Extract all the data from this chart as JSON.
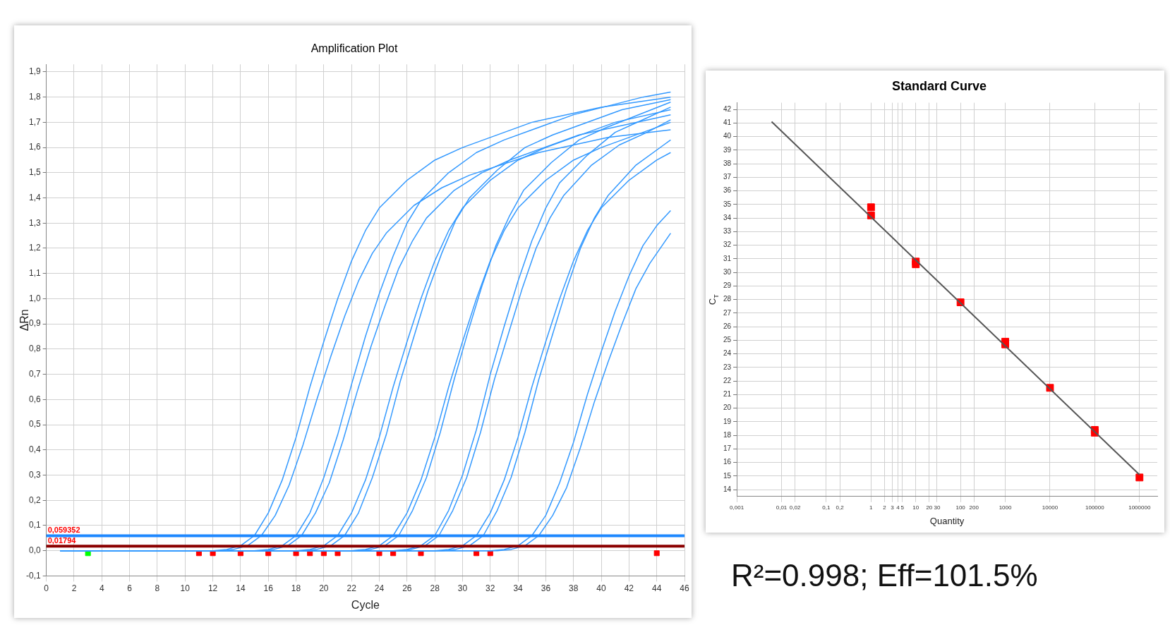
{
  "chart_data": [
    {
      "type": "line",
      "title": "Amplification Plot",
      "xlabel": "Cycle",
      "ylabel": "ΔRn",
      "xlim": [
        0,
        46
      ],
      "xticks": [
        0,
        2,
        4,
        6,
        8,
        10,
        12,
        14,
        16,
        18,
        20,
        22,
        24,
        26,
        28,
        30,
        32,
        34,
        36,
        38,
        40,
        42,
        44,
        46
      ],
      "ylim": [
        -0.1,
        1.93
      ],
      "yticks": [
        {
          "value": -0.1,
          "label": "-0,1"
        },
        {
          "value": 0,
          "label": "0,0"
        },
        {
          "value": 0.1,
          "label": "0,1"
        },
        {
          "value": 0.2,
          "label": "0,2"
        },
        {
          "value": 0.3,
          "label": "0,3"
        },
        {
          "value": 0.4,
          "label": "0,4"
        },
        {
          "value": 0.5,
          "label": "0,5"
        },
        {
          "value": 0.6,
          "label": "0,6"
        },
        {
          "value": 0.7,
          "label": "0,7"
        },
        {
          "value": 0.8,
          "label": "0,8"
        },
        {
          "value": 0.9,
          "label": "0,9"
        },
        {
          "value": 1,
          "label": "1,0"
        },
        {
          "value": 1.1,
          "label": "1,1"
        },
        {
          "value": 1.2,
          "label": "1,2"
        },
        {
          "value": 1.3,
          "label": "1,3"
        },
        {
          "value": 1.4,
          "label": "1,4"
        },
        {
          "value": 1.5,
          "label": "1,5"
        },
        {
          "value": 1.6,
          "label": "1,6"
        },
        {
          "value": 1.7,
          "label": "1,7"
        },
        {
          "value": 1.8,
          "label": "1,8"
        },
        {
          "value": 1.9,
          "label": "1,9"
        }
      ],
      "grid": true,
      "legend": false,
      "ref_lines": [
        {
          "axis": "y",
          "value": 0.059352,
          "label": "0,059352",
          "color": "#1e88ff"
        },
        {
          "axis": "y",
          "value": 0.01794,
          "label": "0,01794",
          "color": "#8b0000"
        }
      ],
      "series": [
        {
          "color": "#3399ff",
          "x": [
            1,
            12,
            13,
            14,
            15,
            16,
            17,
            18,
            19,
            20,
            21,
            22,
            23,
            24,
            26,
            28,
            30,
            35,
            40,
            45
          ],
          "values": [
            0,
            0,
            0.005,
            0.02,
            0.06,
            0.15,
            0.28,
            0.45,
            0.65,
            0.83,
            1.0,
            1.15,
            1.27,
            1.36,
            1.47,
            1.55,
            1.6,
            1.7,
            1.76,
            1.8
          ]
        },
        {
          "color": "#3399ff",
          "x": [
            1,
            12.5,
            13.5,
            14.5,
            15.5,
            16.5,
            17.5,
            18.5,
            19.5,
            20.5,
            21.5,
            22.5,
            23.5,
            24.5,
            26.5,
            28.5,
            30.5,
            35.5,
            40.5,
            45
          ],
          "values": [
            0,
            0,
            0.005,
            0.02,
            0.06,
            0.14,
            0.26,
            0.42,
            0.6,
            0.77,
            0.93,
            1.07,
            1.18,
            1.26,
            1.37,
            1.44,
            1.49,
            1.58,
            1.64,
            1.67
          ]
        },
        {
          "color": "#3399ff",
          "x": [
            1,
            15,
            16,
            17,
            18,
            19,
            20,
            21,
            22,
            23,
            24,
            25,
            26,
            27,
            29,
            31,
            33,
            38,
            43,
            45
          ],
          "values": [
            0,
            0,
            0.005,
            0.02,
            0.06,
            0.15,
            0.29,
            0.46,
            0.66,
            0.85,
            1.02,
            1.17,
            1.3,
            1.39,
            1.5,
            1.58,
            1.63,
            1.73,
            1.8,
            1.82
          ]
        },
        {
          "color": "#3399ff",
          "x": [
            1,
            15.4,
            16.4,
            17.4,
            18.4,
            19.4,
            20.4,
            21.4,
            22.4,
            23.4,
            24.4,
            25.4,
            26.4,
            27.4,
            29.4,
            31.4,
            33.4,
            38.4,
            43.4,
            45
          ],
          "values": [
            0,
            0,
            0.005,
            0.02,
            0.06,
            0.15,
            0.27,
            0.44,
            0.63,
            0.81,
            0.97,
            1.12,
            1.23,
            1.32,
            1.43,
            1.5,
            1.55,
            1.65,
            1.71,
            1.73
          ]
        },
        {
          "color": "#3399ff",
          "x": [
            1,
            18,
            19,
            20,
            21,
            22,
            23,
            24,
            25,
            26,
            27,
            28,
            29,
            30,
            32,
            34,
            36,
            41,
            45
          ],
          "values": [
            0,
            0,
            0.005,
            0.02,
            0.06,
            0.15,
            0.28,
            0.45,
            0.65,
            0.83,
            1.0,
            1.15,
            1.27,
            1.36,
            1.47,
            1.55,
            1.6,
            1.7,
            1.75
          ]
        },
        {
          "color": "#3399ff",
          "x": [
            1,
            18.5,
            19.5,
            20.5,
            21.5,
            22.5,
            23.5,
            24.5,
            25.5,
            26.5,
            27.5,
            28.5,
            29.5,
            30.5,
            32.5,
            34.5,
            36.5,
            41.5,
            45
          ],
          "values": [
            0,
            0,
            0.005,
            0.02,
            0.06,
            0.15,
            0.29,
            0.46,
            0.67,
            0.85,
            1.03,
            1.18,
            1.31,
            1.4,
            1.51,
            1.6,
            1.65,
            1.75,
            1.79
          ]
        },
        {
          "color": "#3399ff",
          "x": [
            1,
            22,
            23,
            24,
            25,
            26,
            27,
            28,
            29,
            30,
            31,
            32,
            33,
            34,
            36,
            38,
            40,
            45
          ],
          "values": [
            0,
            0,
            0.005,
            0.02,
            0.06,
            0.15,
            0.28,
            0.45,
            0.65,
            0.83,
            1.0,
            1.15,
            1.27,
            1.36,
            1.47,
            1.55,
            1.6,
            1.7
          ]
        },
        {
          "color": "#3399ff",
          "x": [
            1,
            22.4,
            23.4,
            24.4,
            25.4,
            26.4,
            27.4,
            28.4,
            29.4,
            30.4,
            31.4,
            32.4,
            33.4,
            34.4,
            36.4,
            38.4,
            40.4,
            45
          ],
          "values": [
            0,
            0,
            0.005,
            0.02,
            0.06,
            0.16,
            0.29,
            0.47,
            0.68,
            0.87,
            1.05,
            1.21,
            1.33,
            1.43,
            1.54,
            1.63,
            1.68,
            1.78
          ]
        },
        {
          "color": "#3399ff",
          "x": [
            1,
            25,
            26,
            27,
            28,
            29,
            30,
            31,
            32,
            33,
            34,
            35,
            36,
            37,
            39,
            41,
            43,
            45
          ],
          "values": [
            0,
            0,
            0.005,
            0.02,
            0.06,
            0.16,
            0.3,
            0.48,
            0.7,
            0.89,
            1.07,
            1.23,
            1.36,
            1.46,
            1.57,
            1.66,
            1.71,
            1.76
          ]
        },
        {
          "color": "#3399ff",
          "x": [
            1,
            25.3,
            26.3,
            27.3,
            28.3,
            29.3,
            30.3,
            31.3,
            32.3,
            33.3,
            34.3,
            35.3,
            36.3,
            37.3,
            39.3,
            41.3,
            43.3,
            45
          ],
          "values": [
            0,
            0,
            0.005,
            0.02,
            0.06,
            0.16,
            0.29,
            0.47,
            0.68,
            0.86,
            1.04,
            1.2,
            1.32,
            1.41,
            1.53,
            1.61,
            1.66,
            1.71
          ]
        },
        {
          "color": "#3399ff",
          "x": [
            1,
            28,
            29,
            30,
            31,
            32,
            33,
            34,
            35,
            36,
            37,
            38,
            39,
            40,
            42,
            44,
            45
          ],
          "values": [
            0,
            0,
            0.005,
            0.02,
            0.06,
            0.15,
            0.28,
            0.45,
            0.65,
            0.83,
            1.0,
            1.15,
            1.27,
            1.36,
            1.47,
            1.55,
            1.58
          ]
        },
        {
          "color": "#3399ff",
          "x": [
            1,
            28.5,
            29.5,
            30.5,
            31.5,
            32.5,
            33.5,
            34.5,
            35.5,
            36.5,
            37.5,
            38.5,
            39.5,
            40.5,
            42.5,
            44.5,
            45
          ],
          "values": [
            0,
            0,
            0.005,
            0.02,
            0.06,
            0.16,
            0.29,
            0.47,
            0.68,
            0.86,
            1.04,
            1.2,
            1.32,
            1.41,
            1.53,
            1.61,
            1.63
          ]
        },
        {
          "color": "#3399ff",
          "x": [
            1,
            32,
            33,
            34,
            35,
            36,
            37,
            38,
            39,
            40,
            41,
            42,
            43,
            44,
            45
          ],
          "values": [
            0,
            0,
            0.005,
            0.02,
            0.06,
            0.14,
            0.27,
            0.43,
            0.62,
            0.79,
            0.95,
            1.09,
            1.21,
            1.29,
            1.35
          ]
        },
        {
          "color": "#3399ff",
          "x": [
            1,
            32.5,
            33.5,
            34.5,
            35.5,
            36.5,
            37.5,
            38.5,
            39.5,
            40.5,
            41.5,
            42.5,
            43.5,
            44.5,
            45
          ],
          "values": [
            0,
            0,
            0.005,
            0.02,
            0.06,
            0.14,
            0.25,
            0.41,
            0.59,
            0.75,
            0.9,
            1.04,
            1.14,
            1.22,
            1.26
          ]
        },
        {
          "type": "scatter",
          "marker": "square",
          "x": [
            3,
            11,
            12,
            14,
            16,
            18,
            19,
            20,
            21,
            24,
            25,
            27,
            31,
            32,
            44
          ],
          "values": [
            -0.01,
            -0.01,
            -0.01,
            -0.01,
            -0.01,
            -0.01,
            -0.01,
            -0.01,
            -0.01,
            -0.01,
            -0.01,
            -0.01,
            -0.01,
            -0.01,
            -0.01
          ],
          "colors": [
            "#00ff00",
            "#ff0000",
            "#ff0000",
            "#ff0000",
            "#ff0000",
            "#ff0000",
            "#ff0000",
            "#ff0000",
            "#ff0000",
            "#ff0000",
            "#ff0000",
            "#ff0000",
            "#ff0000",
            "#ff0000",
            "#ff0000"
          ]
        }
      ]
    },
    {
      "type": "scatter",
      "title": "Standard Curve",
      "xlabel": "Quantity",
      "ylabel": "C$_{T}$",
      "log": "x",
      "xlim": [
        0.001,
        2500000
      ],
      "xticks": [
        {
          "value": 0.001,
          "label": "0,001"
        },
        {
          "value": 0.01,
          "label": "0,01"
        },
        {
          "value": 0.02,
          "label": "0,02"
        },
        {
          "value": 0.1,
          "label": "0,1"
        },
        {
          "value": 0.2,
          "label": "0,2"
        },
        1,
        2,
        3,
        4,
        5,
        10,
        20,
        30,
        100,
        200,
        1000,
        10000,
        100000,
        1000000
      ],
      "ylim": [
        13.5,
        42.5
      ],
      "yticks": [
        14,
        15,
        16,
        17,
        18,
        19,
        20,
        21,
        22,
        23,
        24,
        25,
        26,
        27,
        28,
        29,
        30,
        31,
        32,
        33,
        34,
        35,
        36,
        37,
        38,
        39,
        40,
        41,
        42
      ],
      "grid": true,
      "legend": false,
      "annotations": [
        "R²=0.998; Eff=101.5%"
      ],
      "series": [
        {
          "type": "line",
          "color": "#555555",
          "x": [
            0.006,
            1000000
          ],
          "values": [
            41.1,
            15.1
          ]
        },
        {
          "marker": "square",
          "color": "#ff0000",
          "x": [
            1,
            1,
            10,
            10,
            100,
            1000,
            1000,
            10000,
            100000,
            100000,
            1000000
          ],
          "values": [
            34.8,
            34.2,
            30.6,
            30.8,
            27.8,
            24.7,
            24.9,
            21.5,
            18.2,
            18.4,
            14.9
          ]
        }
      ]
    }
  ]
}
